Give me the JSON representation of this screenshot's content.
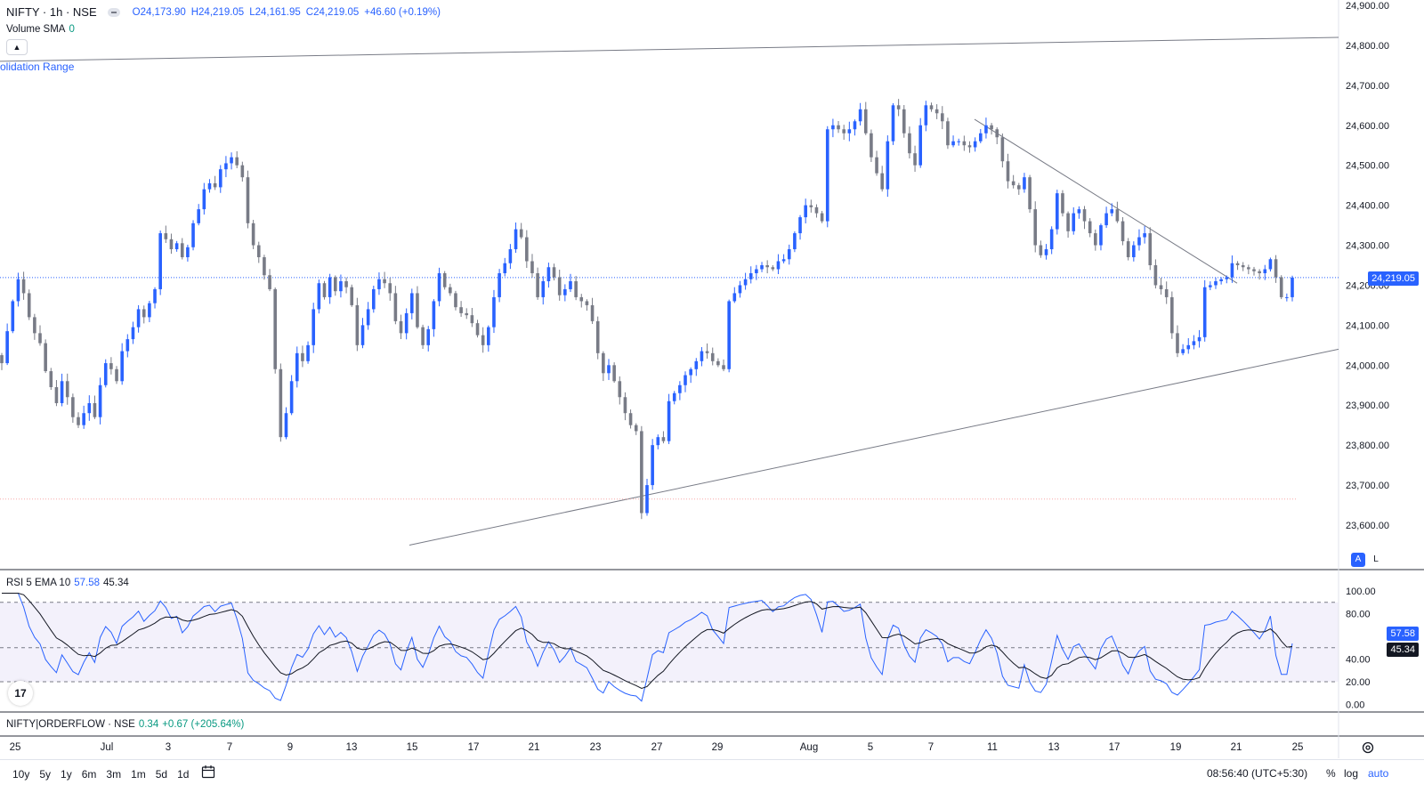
{
  "legend": {
    "symbol": "NIFTY · 1h · NSE",
    "open": "O24,173.90",
    "high": "H24,219.05",
    "low": "L24,161.95",
    "close": "C24,219.05",
    "change": "+46.60 (+0.19%)"
  },
  "volume": {
    "label": "Volume SMA",
    "value": "0"
  },
  "range_label": "olidation Range",
  "rsi": {
    "label": "RSI 5 EMA 10",
    "value_a": "57.58",
    "value_b": "45.34"
  },
  "orderflow": {
    "label": "NIFTY|ORDERFLOW · NSE",
    "value": "0.34",
    "change": "+0.67 (+205.64%)"
  },
  "price_axis": {
    "ticks": [
      "24,900.00",
      "24,800.00",
      "24,700.00",
      "24,600.00",
      "24,500.00",
      "24,400.00",
      "24,300.00",
      "24,200.00",
      "24,100.00",
      "24,000.00",
      "23,900.00",
      "23,800.00",
      "23,700.00",
      "23,600.00"
    ],
    "current_price": "24,219.05"
  },
  "rsi_axis": {
    "ticks": [
      "100.00",
      "80.00",
      "40.00",
      "20.00",
      "0.00"
    ],
    "tag_a": "57.58",
    "tag_b": "45.34"
  },
  "time_axis": [
    "25",
    "Jul",
    "3",
    "7",
    "9",
    "13",
    "15",
    "17",
    "21",
    "23",
    "27",
    "29",
    "Aug",
    "5",
    "7",
    "11",
    "13",
    "17",
    "19",
    "21",
    "25"
  ],
  "scale_buttons": {
    "auto": "A",
    "lock": "L"
  },
  "tv_logo": "17",
  "toolbar": {
    "ranges": [
      "10y",
      "5y",
      "1y",
      "6m",
      "3m",
      "1m",
      "5d",
      "1d"
    ],
    "clock": "08:56:40 (UTC+5:30)",
    "percent": "%",
    "log": "log",
    "auto": "auto"
  },
  "colors": {
    "up": "#2962ff",
    "down": "#787b86",
    "accent": "#2962ff",
    "grid": "#e0e3eb"
  },
  "chart_data": {
    "type": "candlestick",
    "price_ylim": [
      23550,
      24920
    ],
    "rsi_ylim": [
      0,
      100
    ],
    "rsi_levels": [
      20,
      50,
      90
    ],
    "closes": [
      24005,
      24085,
      24160,
      24215,
      24180,
      24120,
      24080,
      24055,
      23985,
      23945,
      23905,
      23960,
      23920,
      23870,
      23850,
      23880,
      23905,
      23870,
      23950,
      24005,
      23990,
      23960,
      24035,
      24065,
      24095,
      24140,
      24120,
      24155,
      24190,
      24330,
      24315,
      24290,
      24305,
      24270,
      24295,
      24355,
      24390,
      24440,
      24455,
      24445,
      24490,
      24505,
      24520,
      24500,
      24470,
      24355,
      24300,
      24270,
      24225,
      24190,
      23990,
      23820,
      23880,
      23960,
      24030,
      24010,
      24050,
      24140,
      24205,
      24170,
      24220,
      24185,
      24210,
      24195,
      24150,
      24050,
      24100,
      24140,
      24190,
      24215,
      24205,
      24180,
      24110,
      24080,
      24130,
      24180,
      24095,
      24050,
      24090,
      24160,
      24230,
      24195,
      24180,
      24145,
      24130,
      24125,
      24105,
      24075,
      24050,
      24095,
      24170,
      24230,
      24255,
      24290,
      24340,
      24320,
      24260,
      24230,
      24170,
      24210,
      24245,
      24220,
      24175,
      24190,
      24210,
      24170,
      24160,
      24150,
      24110,
      24030,
      23980,
      24000,
      23960,
      23920,
      23880,
      23850,
      23835,
      23630,
      23700,
      23800,
      23820,
      23810,
      23910,
      23930,
      23950,
      23975,
      23990,
      24010,
      24035,
      24030,
      24010,
      24000,
      23990,
      24160,
      24180,
      24200,
      24215,
      24230,
      24240,
      24250,
      24245,
      24240,
      24260,
      24265,
      24290,
      24330,
      24370,
      24400,
      24395,
      24380,
      24360,
      24590,
      24600,
      24590,
      24580,
      24590,
      24610,
      24640,
      24580,
      24520,
      24480,
      24440,
      24560,
      24650,
      24640,
      24580,
      24530,
      24500,
      24600,
      24650,
      24640,
      24630,
      24610,
      24550,
      24560,
      24560,
      24550,
      24545,
      24560,
      24580,
      24600,
      24590,
      24570,
      24510,
      24460,
      24450,
      24440,
      24470,
      24390,
      24300,
      24275,
      24290,
      24340,
      24430,
      24380,
      24335,
      24380,
      24390,
      24360,
      24330,
      24300,
      24350,
      24380,
      24390,
      24360,
      24310,
      24270,
      24300,
      24320,
      24330,
      24250,
      24200,
      24190,
      24170,
      24080,
      24030,
      24040,
      24050,
      24060,
      24070,
      24195,
      24200,
      24210,
      24215,
      24220,
      24255,
      24250,
      24245,
      24240,
      24235,
      24230,
      24240,
      24265,
      24220,
      24170,
      24170,
      24219.05
    ],
    "price_lines": [
      {
        "name": "resistance",
        "x1": 0,
        "y1": 24760,
        "x2": 1504,
        "y2": 24820
      },
      {
        "name": "support",
        "x1": 460,
        "y1": 23550,
        "x2": 1504,
        "y2": 24040
      },
      {
        "name": "downtrend",
        "x1": 1095,
        "y1": 24615,
        "x2": 1390,
        "y2": 24205
      }
    ],
    "dotted_level": 23665
  }
}
